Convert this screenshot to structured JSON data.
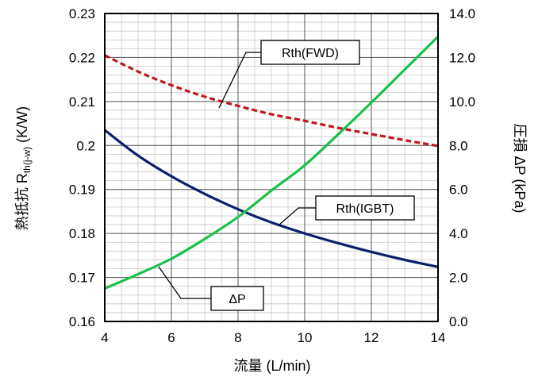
{
  "chart_data": {
    "type": "line",
    "xlabel": "流量 (L/min)",
    "ylabel_left": {
      "main": "熱抵抗 R",
      "sub": "th(j-w)",
      "unit": " (K/W)"
    },
    "ylabel_right": "圧損 ΔP (kPa)",
    "xlim": [
      4,
      14
    ],
    "ylim_left": [
      0.16,
      0.23
    ],
    "ylim_right": [
      0,
      14
    ],
    "x_ticks": [
      "4",
      "6",
      "8",
      "10",
      "12",
      "14"
    ],
    "y_left_ticks": [
      "0.16",
      "0.17",
      "0.18",
      "0.19",
      "0.2",
      "0.21",
      "0.22",
      "0.23"
    ],
    "y_right_ticks": [
      "0.0",
      "2.0",
      "4.0",
      "6.0",
      "8.0",
      "10.0",
      "12.0",
      "14.0"
    ],
    "grid": true,
    "x": [
      4,
      5,
      6,
      7,
      8,
      9,
      10,
      11,
      12,
      13,
      14
    ],
    "series": [
      {
        "name": "Rth(FWD)",
        "axis": "left",
        "color": "#c0171d",
        "style": "dashed",
        "values": [
          0.2205,
          0.2168,
          0.2137,
          0.2111,
          0.209,
          0.2071,
          0.2056,
          0.204,
          0.2026,
          0.2012,
          0.1999
        ]
      },
      {
        "name": "Rth(IGBT)",
        "axis": "left",
        "color": "#0c1f6b",
        "style": "solid",
        "values": [
          0.2035,
          0.1977,
          0.193,
          0.189,
          0.1855,
          0.1825,
          0.18,
          0.1778,
          0.1758,
          0.174,
          0.1724
        ]
      },
      {
        "name": "ΔP",
        "axis": "right",
        "color": "#19c24a",
        "style": "solid",
        "values": [
          1.5,
          2.15,
          2.85,
          3.75,
          4.75,
          5.95,
          7.1,
          8.5,
          9.95,
          11.45,
          12.95
        ]
      }
    ],
    "annotations": [
      "Rth(FWD)",
      "Rth(IGBT)",
      "ΔP"
    ]
  }
}
